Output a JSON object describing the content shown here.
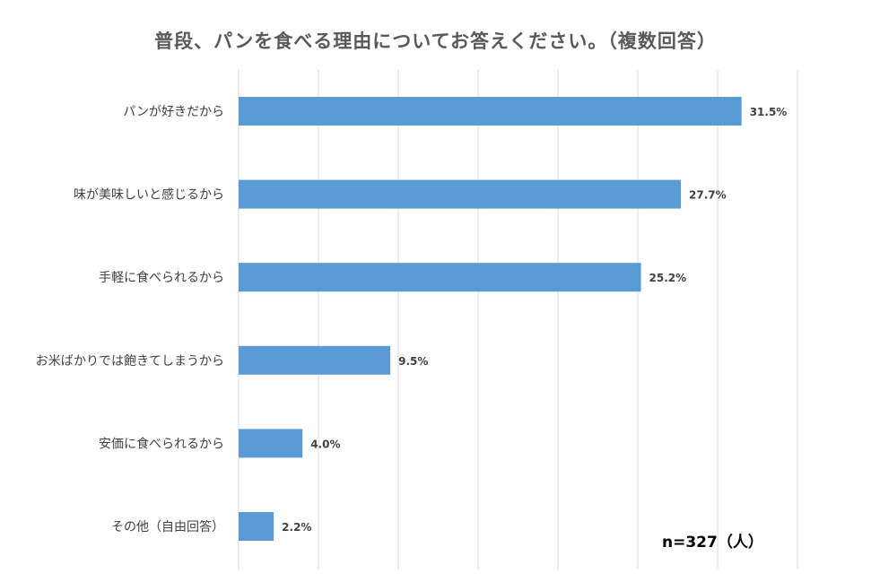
{
  "chart_data": {
    "type": "bar",
    "orientation": "horizontal",
    "title": "普段、パンを食べる理由についてお答えください。（複数回答）",
    "categories": [
      "パンが好きだから",
      "味が美味しいと感じるから",
      "手軽に食べられるから",
      "お米ばかりでは飽きてしまうから",
      "安価に食べられるから",
      "その他（自由回答）"
    ],
    "values": [
      31.5,
      27.7,
      25.2,
      9.5,
      4.0,
      2.2
    ],
    "value_labels": [
      "31.5%",
      "27.7%",
      "25.2%",
      "9.5%",
      "4.0%",
      "2.2%"
    ],
    "unit": "%",
    "xlim": [
      0,
      35
    ],
    "grid": true,
    "bar_color": "#5b9bd5",
    "annotation": "n=327（人）"
  }
}
